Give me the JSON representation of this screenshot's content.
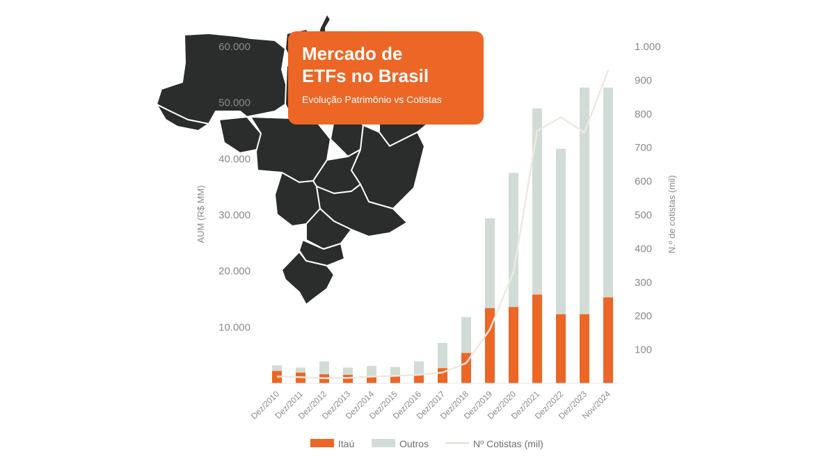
{
  "colors": {
    "itau": "#ec6625",
    "outros": "#d2dcd7",
    "cotistas_line": "#efe8e1",
    "map": "#2b2d2d",
    "axis_text": "#8a8a8a"
  },
  "header": {
    "title_line1": "Mercado de",
    "title_line2": "ETFs no Brasil",
    "subtitle": "Evolução Patrimônio vs Cotistas"
  },
  "chart_data": {
    "type": "bar",
    "categories": [
      "Dez/2010",
      "Dez/2011",
      "Dez/2012",
      "Dez/2013",
      "Dez/2014",
      "Dez/2015",
      "Dez/2016",
      "Dez/2017",
      "Dez/2018",
      "Dez/2019",
      "Dez/2020",
      "Dez/2021",
      "Dez/2022",
      "Dez/2023",
      "Nov/2024"
    ],
    "series": [
      {
        "name": "Itaú",
        "axis": "left",
        "stack": "total",
        "values": [
          2200,
          1900,
          1600,
          1500,
          1300,
          1200,
          1500,
          2700,
          5400,
          13400,
          13600,
          15800,
          12300,
          12300,
          15300
        ]
      },
      {
        "name": "Outros",
        "axis": "left",
        "stack": "total",
        "values": [
          1000,
          900,
          2300,
          1300,
          1800,
          1700,
          2400,
          4500,
          6400,
          16000,
          23900,
          33200,
          29500,
          40400,
          37400
        ]
      },
      {
        "name": "Nº Cotistas (mil)",
        "axis": "right",
        "type": "line",
        "values": [
          20,
          18,
          15,
          16,
          20,
          22,
          25,
          32,
          60,
          160,
          330,
          750,
          790,
          745,
          930
        ]
      }
    ],
    "ylabel": "AUM (R$ MM)",
    "y2label": "N.º de cotistas (mil)",
    "ylim": [
      0,
      60000
    ],
    "y2lim": [
      0,
      1000
    ],
    "yticks": [
      "10.000",
      "20.000",
      "30.000",
      "40.000",
      "50.000",
      "60.000"
    ],
    "y2ticks": [
      "100",
      "200",
      "300",
      "400",
      "500",
      "600",
      "700",
      "800",
      "900",
      "1.000"
    ],
    "legend": [
      {
        "label": "Itaú",
        "kind": "bar",
        "color": "#ec6625"
      },
      {
        "label": "Outros",
        "kind": "bar",
        "color": "#d2dcd7"
      },
      {
        "label": "Nº Cotistas (mil)",
        "kind": "line",
        "color": "#efe8e1"
      }
    ],
    "legend_position": "bottom",
    "grid": false
  }
}
